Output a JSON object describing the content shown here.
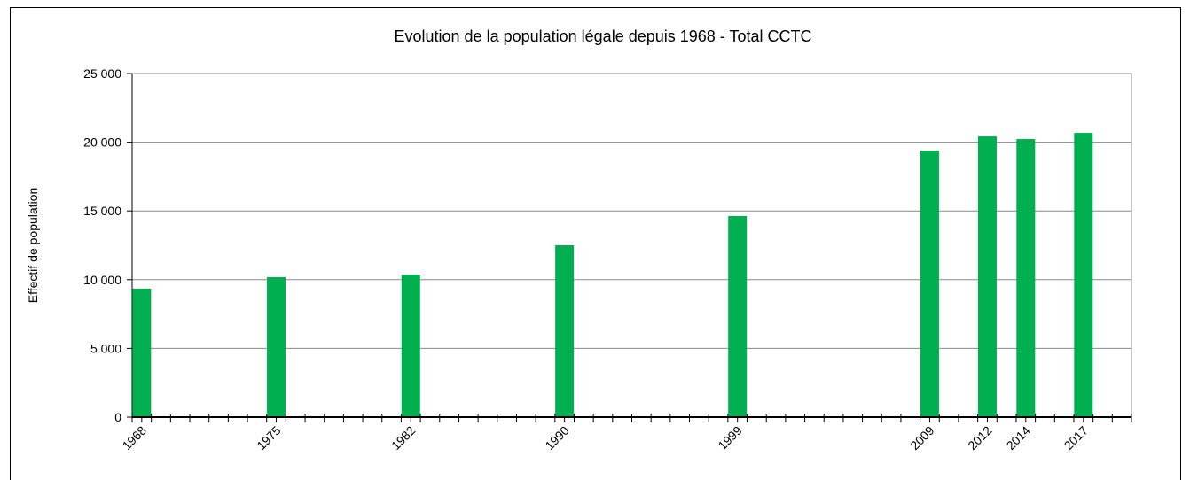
{
  "chart_data": {
    "type": "bar",
    "title": "Evolution de la population légale depuis 1968 - Total CCTC",
    "y_label": "Effectif de population",
    "x": [
      1968,
      1975,
      1982,
      1990,
      1999,
      2009,
      2012,
      2014,
      2017
    ],
    "values": [
      9350,
      10180,
      10370,
      12500,
      14630,
      19390,
      20420,
      20230,
      20680
    ],
    "color": "#00b050",
    "xlim": [
      1967.5,
      2019.5
    ],
    "xticks": [
      1968,
      1975,
      1982,
      1990,
      1999,
      2009,
      2012,
      2014,
      2017
    ],
    "ylim": [
      0,
      25000
    ],
    "yticks": [
      0,
      {
        "value": 5000,
        "label": "5 000"
      },
      {
        "value": 10000,
        "label": "10 000"
      },
      {
        "value": 15000,
        "label": "15 000"
      },
      {
        "value": 20000,
        "label": "20 000"
      },
      {
        "value": 25000,
        "label": "25 000"
      }
    ],
    "grid": true
  }
}
